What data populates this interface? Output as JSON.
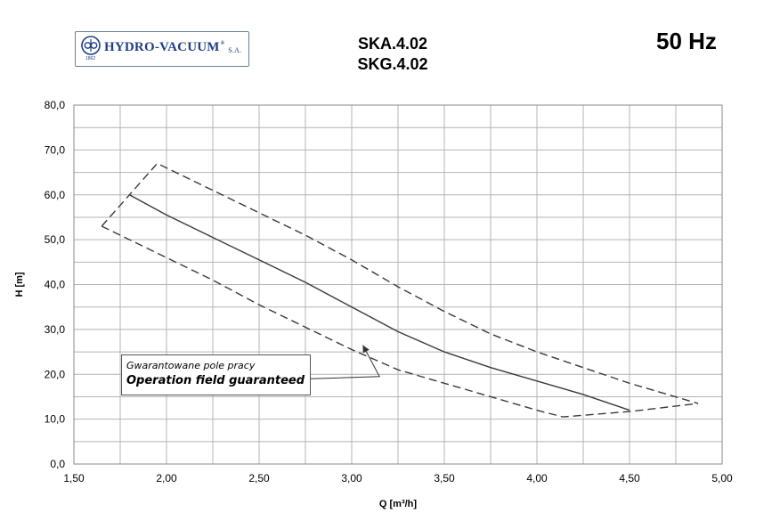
{
  "header": {
    "logo_text": "HYDRO-VACUUM",
    "logo_suffix": "S.A.",
    "logo_reg": "®",
    "logo_year": "1862",
    "model_line1": "SKA.4.02",
    "model_line2": "SKG.4.02",
    "frequency": "50 Hz"
  },
  "annotation": {
    "polish": "Gwarantowane pole pracy",
    "english": "Operation field guaranteed"
  },
  "colors": {
    "brand": "#1f3f86",
    "grid": "#b4b4b4",
    "curve": "#3a3a3a"
  },
  "chart_data": {
    "type": "line",
    "xlabel": "Q [m³/h]",
    "ylabel": "H  [m]",
    "xlim": [
      1.5,
      5.0
    ],
    "ylim": [
      0,
      80
    ],
    "x_ticks": [
      "1,50",
      "2,00",
      "2,50",
      "3,00",
      "3,50",
      "4,00",
      "4,50",
      "5,00"
    ],
    "y_ticks": [
      "0,0",
      "10,0",
      "20,0",
      "30,0",
      "40,0",
      "50,0",
      "60,0",
      "70,0",
      "80,0"
    ],
    "grid": true,
    "series": [
      {
        "style": "solid",
        "x": [
          1.8,
          2.0,
          2.25,
          2.5,
          2.75,
          3.0,
          3.25,
          3.5,
          3.75,
          4.0,
          4.25,
          4.5
        ],
        "y": [
          60.0,
          55.5,
          50.5,
          45.5,
          40.5,
          35.0,
          29.5,
          25.0,
          21.5,
          18.5,
          15.5,
          12.0
        ]
      },
      {
        "style": "dashed",
        "x": [
          1.65,
          1.95,
          2.25,
          2.5,
          2.75,
          3.0,
          3.25,
          3.5,
          3.75,
          4.0,
          4.25,
          4.5,
          4.87
        ],
        "y": [
          53.0,
          67.0,
          61.0,
          56.0,
          51.0,
          45.5,
          39.5,
          34.0,
          29.0,
          25.0,
          21.5,
          18.0,
          13.5
        ]
      },
      {
        "style": "dashed",
        "x": [
          1.65,
          1.8,
          2.0,
          2.25,
          2.5,
          2.75,
          3.0,
          3.25,
          3.5,
          3.75,
          4.0,
          4.14,
          4.5,
          4.87
        ],
        "y": [
          53.0,
          50.0,
          46.0,
          41.0,
          35.5,
          30.5,
          25.5,
          21.0,
          18.0,
          15.0,
          12.0,
          10.5,
          11.7,
          13.5
        ]
      }
    ],
    "annotation_arrow": {
      "from": [
        3.15,
        19.5
      ],
      "to": [
        3.06,
        26.5
      ]
    }
  }
}
